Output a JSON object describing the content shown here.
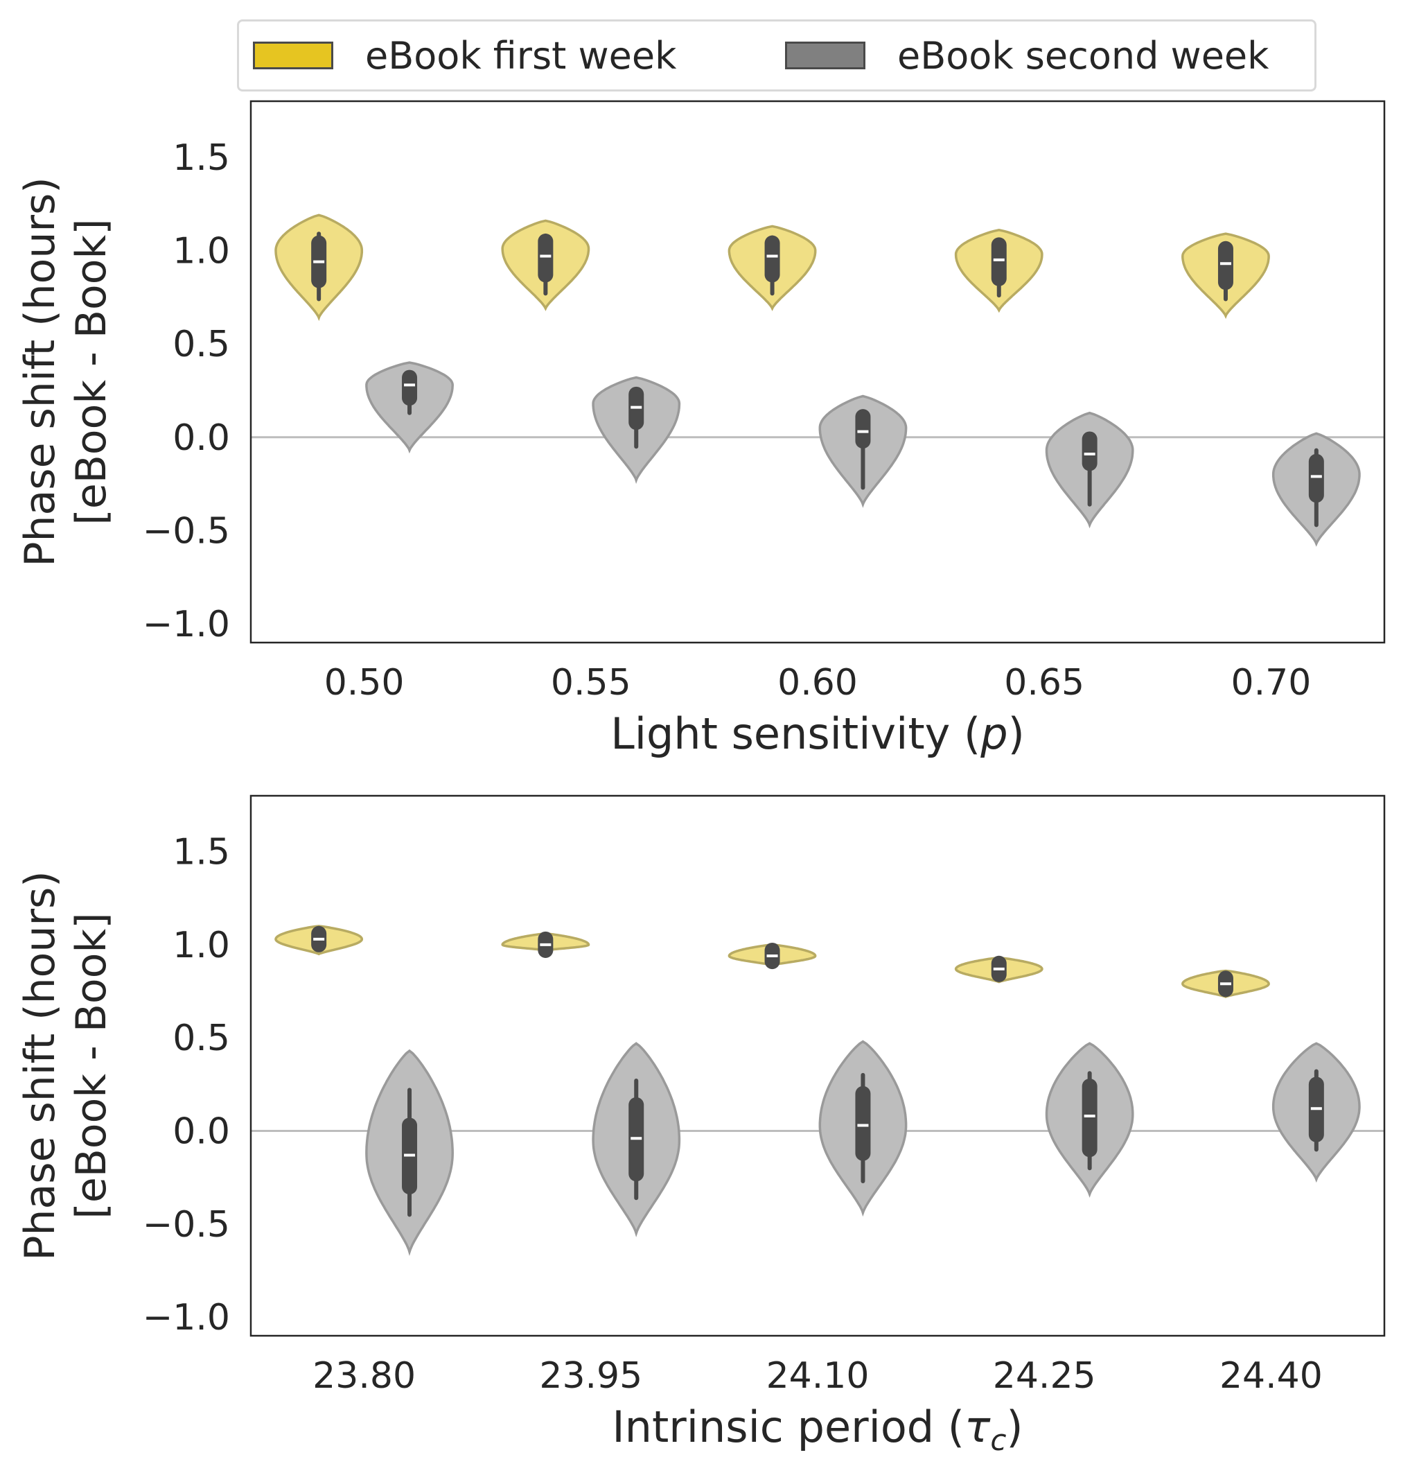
{
  "legend": {
    "items": [
      {
        "label": "eBook first week",
        "color": "#e6c521"
      },
      {
        "label": "eBook second week",
        "color": "#808080"
      }
    ]
  },
  "styles": {
    "first_week_fill": "#f0df85",
    "first_week_stroke": "#b8ab62",
    "second_week_fill": "#bdbdbd",
    "second_week_stroke": "#9a9a9a",
    "box_color": "#4a4a4a",
    "median_color": "#ffffff",
    "reference_line_color": "#bdbdbd"
  },
  "chart_data": [
    {
      "type": "violin",
      "xlabel_parts": [
        "Light sensitivity (",
        "p",
        ")"
      ],
      "ylabel_lines": [
        "Phase shift (hours)",
        "[eBook - Book]"
      ],
      "ylim": [
        -1.1,
        1.8
      ],
      "yticks": [
        -1.0,
        -0.5,
        0.0,
        0.5,
        1.0,
        1.5
      ],
      "ytick_labels": [
        "−1.0",
        "−0.5",
        "0.0",
        "0.5",
        "1.0",
        "1.5"
      ],
      "reference_line": 0.0,
      "categories": [
        "0.50",
        "0.55",
        "0.60",
        "0.65",
        "0.70"
      ],
      "series": [
        {
          "name": "eBook first week",
          "violins": [
            {
              "median": 0.94,
              "q1": 0.84,
              "q3": 1.04,
              "whisker_low": 0.74,
              "whisker_high": 1.09,
              "min": 0.64,
              "max": 1.19,
              "peak": 1.0
            },
            {
              "median": 0.97,
              "q1": 0.87,
              "q3": 1.05,
              "whisker_low": 0.77,
              "whisker_high": 1.08,
              "min": 0.69,
              "max": 1.16,
              "peak": 1.01
            },
            {
              "median": 0.97,
              "q1": 0.87,
              "q3": 1.04,
              "whisker_low": 0.77,
              "whisker_high": 1.07,
              "min": 0.69,
              "max": 1.13,
              "peak": 1.0
            },
            {
              "median": 0.95,
              "q1": 0.85,
              "q3": 1.03,
              "whisker_low": 0.76,
              "whisker_high": 1.05,
              "min": 0.68,
              "max": 1.11,
              "peak": 0.98
            },
            {
              "median": 0.93,
              "q1": 0.83,
              "q3": 1.01,
              "whisker_low": 0.74,
              "whisker_high": 1.03,
              "min": 0.65,
              "max": 1.09,
              "peak": 0.97
            }
          ]
        },
        {
          "name": "eBook second week",
          "violins": [
            {
              "median": 0.28,
              "q1": 0.21,
              "q3": 0.32,
              "whisker_low": 0.13,
              "whisker_high": 0.33,
              "min": -0.07,
              "max": 0.4,
              "peak": 0.28
            },
            {
              "median": 0.16,
              "q1": 0.08,
              "q3": 0.23,
              "whisker_low": -0.05,
              "whisker_high": 0.25,
              "min": -0.23,
              "max": 0.32,
              "peak": 0.18
            },
            {
              "median": 0.03,
              "q1": -0.02,
              "q3": 0.11,
              "whisker_low": -0.27,
              "whisker_high": 0.12,
              "min": -0.36,
              "max": 0.22,
              "peak": 0.05
            },
            {
              "median": -0.09,
              "q1": -0.14,
              "q3": -0.01,
              "whisker_low": -0.36,
              "whisker_high": 0.0,
              "min": -0.47,
              "max": 0.13,
              "peak": -0.07
            },
            {
              "median": -0.21,
              "q1": -0.31,
              "q3": -0.13,
              "whisker_low": -0.47,
              "whisker_high": -0.07,
              "min": -0.57,
              "max": 0.02,
              "peak": -0.2
            }
          ]
        }
      ]
    },
    {
      "type": "violin",
      "xlabel_parts": [
        "Intrinsic period (",
        "τ",
        "c",
        ")"
      ],
      "ylabel_lines": [
        "Phase shift (hours)",
        "[eBook - Book]"
      ],
      "ylim": [
        -1.1,
        1.8
      ],
      "yticks": [
        -1.0,
        -0.5,
        0.0,
        0.5,
        1.0,
        1.5
      ],
      "ytick_labels": [
        "−1.0",
        "−0.5",
        "0.0",
        "0.5",
        "1.0",
        "1.5"
      ],
      "reference_line": 0.0,
      "categories": [
        "23.80",
        "23.95",
        "24.10",
        "24.25",
        "24.40"
      ],
      "series": [
        {
          "name": "eBook first week",
          "violins": [
            {
              "median": 1.03,
              "q1": 1.0,
              "q3": 1.06,
              "whisker_low": 0.98,
              "whisker_high": 1.08,
              "min": 0.95,
              "max": 1.1,
              "peak": 1.03
            },
            {
              "median": 1.0,
              "q1": 0.97,
              "q3": 1.03,
              "whisker_low": 0.96,
              "whisker_high": 1.04,
              "min": 0.97,
              "max": 1.06,
              "peak": 1.0
            },
            {
              "median": 0.94,
              "q1": 0.91,
              "q3": 0.97,
              "whisker_low": 0.9,
              "whisker_high": 0.98,
              "min": 0.89,
              "max": 1.0,
              "peak": 0.94
            },
            {
              "median": 0.87,
              "q1": 0.84,
              "q3": 0.9,
              "whisker_low": 0.83,
              "whisker_high": 0.91,
              "min": 0.8,
              "max": 0.93,
              "peak": 0.87
            },
            {
              "median": 0.79,
              "q1": 0.76,
              "q3": 0.82,
              "whisker_low": 0.75,
              "whisker_high": 0.83,
              "min": 0.72,
              "max": 0.86,
              "peak": 0.79
            }
          ]
        },
        {
          "name": "eBook second week",
          "violins": [
            {
              "median": -0.13,
              "q1": -0.3,
              "q3": 0.03,
              "whisker_low": -0.45,
              "whisker_high": 0.22,
              "min": -0.65,
              "max": 0.43,
              "peak": -0.12
            },
            {
              "median": -0.04,
              "q1": -0.23,
              "q3": 0.14,
              "whisker_low": -0.36,
              "whisker_high": 0.27,
              "min": -0.55,
              "max": 0.47,
              "peak": -0.05
            },
            {
              "median": 0.03,
              "q1": -0.12,
              "q3": 0.2,
              "whisker_low": -0.27,
              "whisker_high": 0.3,
              "min": -0.44,
              "max": 0.48,
              "peak": 0.03
            },
            {
              "median": 0.08,
              "q1": -0.1,
              "q3": 0.24,
              "whisker_low": -0.2,
              "whisker_high": 0.31,
              "min": -0.34,
              "max": 0.47,
              "peak": 0.09
            },
            {
              "median": 0.12,
              "q1": -0.02,
              "q3": 0.25,
              "whisker_low": -0.1,
              "whisker_high": 0.32,
              "min": -0.26,
              "max": 0.47,
              "peak": 0.13
            }
          ]
        }
      ]
    }
  ]
}
